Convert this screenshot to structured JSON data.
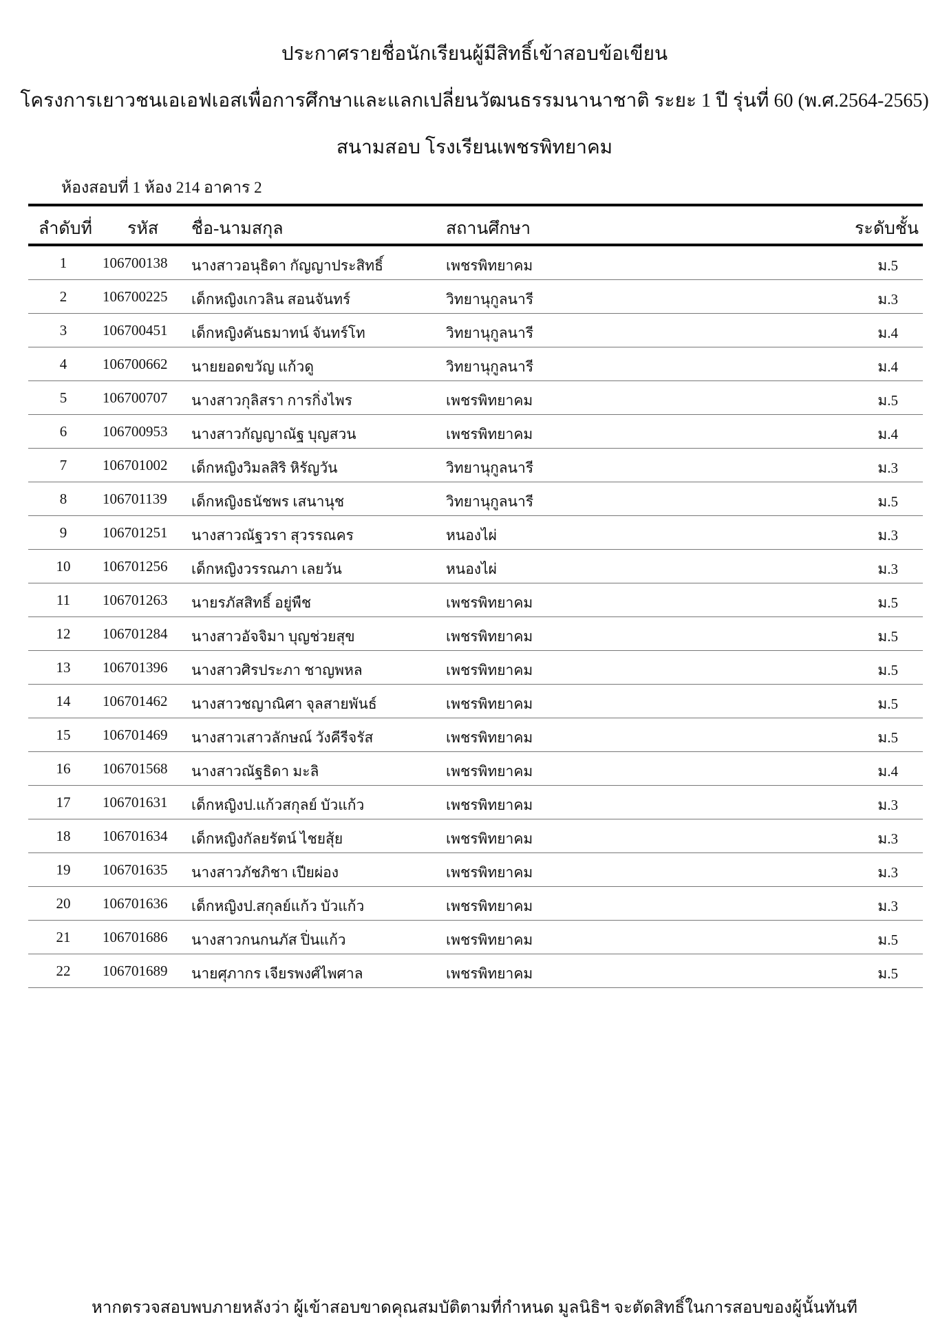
{
  "header": {
    "title": "ประกาศรายชื่อนักเรียนผู้มีสิทธิ์เข้าสอบข้อเขียน",
    "program": "โครงการเยาวชนเอเอฟเอสเพื่อการศึกษาและแลกเปลี่ยนวัฒนธรรมนานาชาติ ระยะ 1 ปี รุ่นที่ 60 (พ.ศ.2564-2565)",
    "venue": "สนามสอบ โรงเรียนเพชรพิทยาคม",
    "room": "ห้องสอบที่ 1 ห้อง 214  อาคาร 2"
  },
  "table": {
    "columns": [
      "ลำดับที่",
      "รหัส",
      "ชื่อ-นามสกุล",
      "สถานศึกษา",
      "ระดับชั้น"
    ],
    "rows": [
      [
        "1",
        "106700138",
        "นางสาวอนุธิดา กัญญาประสิทธิ์",
        "เพชรพิทยาคม",
        "ม.5"
      ],
      [
        "2",
        "106700225",
        "เด็กหญิงเกวลิน สอนจันทร์",
        "วิทยานุกูลนารี",
        "ม.3"
      ],
      [
        "3",
        "106700451",
        "เด็กหญิงคันธมาทน์ จันทร์โท",
        "วิทยานุกูลนารี",
        "ม.4"
      ],
      [
        "4",
        "106700662",
        "นายยอดขวัญ แก้วดู",
        "วิทยานุกูลนารี",
        "ม.4"
      ],
      [
        "5",
        "106700707",
        "นางสาวกุลิสรา การกิ่งไพร",
        "เพชรพิทยาคม",
        "ม.5"
      ],
      [
        "6",
        "106700953",
        "นางสาวกัญญาณัฐ บุญสวน",
        "เพชรพิทยาคม",
        "ม.4"
      ],
      [
        "7",
        "106701002",
        "เด็กหญิงวิมลสิริ หิรัญวัน",
        "วิทยานุกูลนารี",
        "ม.3"
      ],
      [
        "8",
        "106701139",
        "เด็กหญิงธนัชพร เสนานุช",
        "วิทยานุกูลนารี",
        "ม.5"
      ],
      [
        "9",
        "106701251",
        "นางสาวณัฐวรา สุวรรณคร",
        "หนองไผ่",
        "ม.3"
      ],
      [
        "10",
        "106701256",
        "เด็กหญิงวรรณภา เลยวัน",
        "หนองไผ่",
        "ม.3"
      ],
      [
        "11",
        "106701263",
        "นายรภัสสิทธิ์ อยู่พืช",
        "เพชรพิทยาคม",
        "ม.5"
      ],
      [
        "12",
        "106701284",
        "นางสาวอัจจิมา บุญช่วยสุข",
        "เพชรพิทยาคม",
        "ม.5"
      ],
      [
        "13",
        "106701396",
        "นางสาวศิรประภา ชาญพหล",
        "เพชรพิทยาคม",
        "ม.5"
      ],
      [
        "14",
        "106701462",
        "นางสาวชญาณิศา จุลสายพันธ์",
        "เพชรพิทยาคม",
        "ม.5"
      ],
      [
        "15",
        "106701469",
        "นางสาวเสาวลักษณ์ วังคีรีจรัส",
        "เพชรพิทยาคม",
        "ม.5"
      ],
      [
        "16",
        "106701568",
        "นางสาวณัฐธิดา มะลิ",
        "เพชรพิทยาคม",
        "ม.4"
      ],
      [
        "17",
        "106701631",
        "เด็กหญิงป.แก้วสกุลย์ บัวแก้ว",
        "เพชรพิทยาคม",
        "ม.3"
      ],
      [
        "18",
        "106701634",
        "เด็กหญิงกัลยรัตน์ ไชยสุ้ย",
        "เพชรพิทยาคม",
        "ม.3"
      ],
      [
        "19",
        "106701635",
        "นางสาวภัชภิชา เปียผ่อง",
        "เพชรพิทยาคม",
        "ม.3"
      ],
      [
        "20",
        "106701636",
        "เด็กหญิงป.สกุลย์แก้ว บัวแก้ว",
        "เพชรพิทยาคม",
        "ม.3"
      ],
      [
        "21",
        "106701686",
        "นางสาวกนกนภัส ปิ่นแก้ว",
        "เพชรพิทยาคม",
        "ม.5"
      ],
      [
        "22",
        "106701689",
        "นายศุภากร เจียรพงศ์ไพศาล",
        "เพชรพิทยาคม",
        "ม.5"
      ]
    ]
  },
  "footer": "หากตรวจสอบพบภายหลังว่า ผู้เข้าสอบขาดคุณสมบัติตามที่กำหนด มูลนิธิฯ จะตัดสิทธิ์ในการสอบของผู้นั้นทันที"
}
